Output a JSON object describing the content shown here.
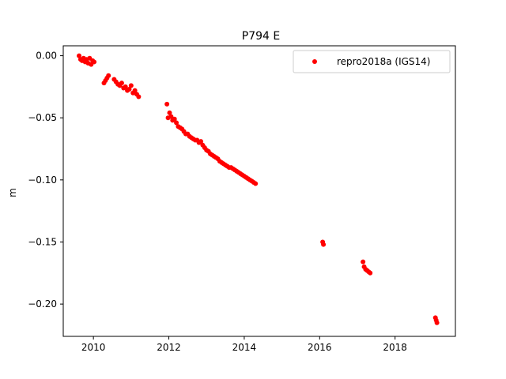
{
  "chart_data": {
    "type": "scatter",
    "title": "P794 E",
    "xlabel": "",
    "ylabel": "m",
    "xlim": [
      2009.2,
      2019.6
    ],
    "ylim": [
      -0.226,
      0.008
    ],
    "xticks": [
      2010,
      2012,
      2014,
      2016,
      2018
    ],
    "xtick_labels": [
      "2010",
      "2012",
      "2014",
      "2016",
      "2018"
    ],
    "yticks": [
      0.0,
      -0.05,
      -0.1,
      -0.15,
      -0.2
    ],
    "ytick_labels": [
      "0.00",
      "−0.05",
      "−0.10",
      "−0.15",
      "−0.20"
    ],
    "grid": false,
    "legend_position": "top-right",
    "series": [
      {
        "name": "repro2018a (IGS14)",
        "color": "#ff0000",
        "marker": "circle",
        "x": [
          2009.62,
          2009.66,
          2009.7,
          2009.74,
          2009.78,
          2009.82,
          2009.86,
          2009.9,
          2009.94,
          2009.98,
          2010.02,
          2010.28,
          2010.32,
          2010.36,
          2010.4,
          2010.55,
          2010.6,
          2010.65,
          2010.7,
          2010.75,
          2010.8,
          2010.85,
          2010.9,
          2010.95,
          2011.0,
          2011.05,
          2011.1,
          2011.15,
          2011.2,
          2011.95,
          2011.98,
          2012.02,
          2012.06,
          2012.1,
          2012.15,
          2012.2,
          2012.25,
          2012.3,
          2012.35,
          2012.4,
          2012.45,
          2012.5,
          2012.55,
          2012.6,
          2012.65,
          2012.7,
          2012.75,
          2012.8,
          2012.85,
          2012.9,
          2012.95,
          2013.0,
          2013.05,
          2013.1,
          2013.15,
          2013.2,
          2013.25,
          2013.3,
          2013.35,
          2013.4,
          2013.45,
          2013.5,
          2013.55,
          2013.6,
          2013.65,
          2013.7,
          2013.75,
          2013.8,
          2013.85,
          2013.9,
          2013.95,
          2014.0,
          2014.05,
          2014.1,
          2014.15,
          2014.2,
          2014.25,
          2014.3,
          2016.08,
          2016.1,
          2017.15,
          2017.18,
          2017.22,
          2017.26,
          2017.3,
          2017.34,
          2019.07,
          2019.09,
          2019.11
        ],
        "y": [
          0.0,
          -0.003,
          -0.004,
          -0.002,
          -0.005,
          -0.003,
          -0.006,
          -0.002,
          -0.007,
          -0.004,
          -0.005,
          -0.022,
          -0.02,
          -0.018,
          -0.016,
          -0.019,
          -0.021,
          -0.023,
          -0.024,
          -0.022,
          -0.026,
          -0.025,
          -0.028,
          -0.027,
          -0.024,
          -0.03,
          -0.028,
          -0.031,
          -0.033,
          -0.039,
          -0.05,
          -0.046,
          -0.049,
          -0.052,
          -0.051,
          -0.054,
          -0.057,
          -0.058,
          -0.059,
          -0.061,
          -0.063,
          -0.063,
          -0.065,
          -0.066,
          -0.067,
          -0.068,
          -0.068,
          -0.07,
          -0.069,
          -0.072,
          -0.074,
          -0.076,
          -0.077,
          -0.079,
          -0.08,
          -0.081,
          -0.082,
          -0.083,
          -0.085,
          -0.086,
          -0.087,
          -0.088,
          -0.089,
          -0.09,
          -0.09,
          -0.091,
          -0.092,
          -0.093,
          -0.094,
          -0.095,
          -0.096,
          -0.097,
          -0.098,
          -0.099,
          -0.1,
          -0.101,
          -0.102,
          -0.103,
          -0.15,
          -0.152,
          -0.166,
          -0.17,
          -0.172,
          -0.173,
          -0.174,
          -0.175,
          -0.211,
          -0.213,
          -0.215
        ]
      }
    ]
  }
}
